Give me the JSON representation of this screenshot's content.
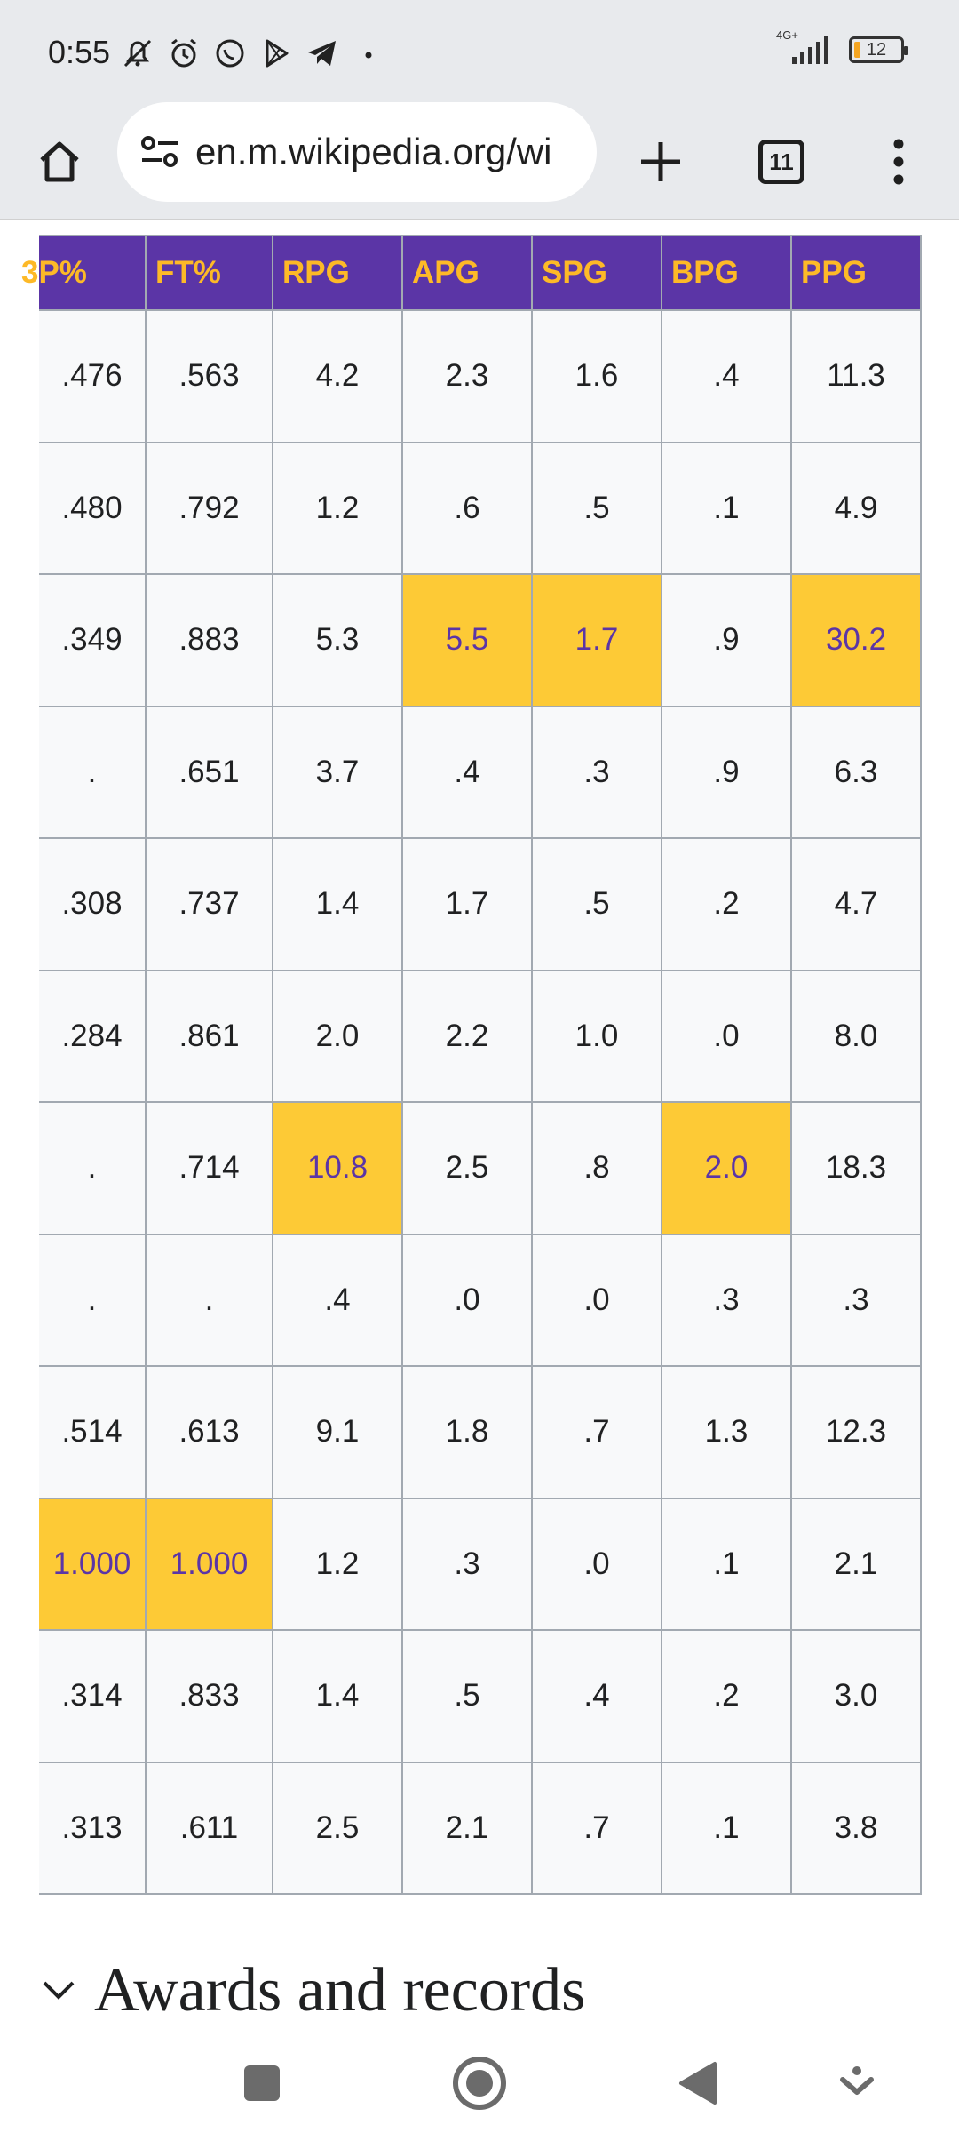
{
  "status_bar": {
    "time": "0:55",
    "network": "4G+",
    "battery": "12",
    "icons": [
      "notifications-off-icon",
      "alarm-icon",
      "whatsapp-icon",
      "play-store-icon",
      "telegram-icon",
      "dot-icon"
    ]
  },
  "browser": {
    "url": "en.m.wikipedia.org/wi",
    "tab_count": "11"
  },
  "table": {
    "columns": [
      "3P%",
      "FT%",
      "RPG",
      "APG",
      "SPG",
      "BPG",
      "PPG"
    ],
    "rows": [
      [
        ".476",
        ".563",
        "4.2",
        "2.3",
        "1.6",
        ".4",
        "11.3"
      ],
      [
        ".480",
        ".792",
        "1.2",
        ".6",
        ".5",
        ".1",
        "4.9"
      ],
      [
        ".349",
        ".883",
        "5.3",
        "5.5",
        "1.7",
        ".9",
        "30.2"
      ],
      [
        ".",
        ".651",
        "3.7",
        ".4",
        ".3",
        ".9",
        "6.3"
      ],
      [
        ".308",
        ".737",
        "1.4",
        "1.7",
        ".5",
        ".2",
        "4.7"
      ],
      [
        ".284",
        ".861",
        "2.0",
        "2.2",
        "1.0",
        ".0",
        "8.0"
      ],
      [
        ".",
        ".714",
        "10.8",
        "2.5",
        ".8",
        "2.0",
        "18.3"
      ],
      [
        ".",
        ".",
        ".4",
        ".0",
        ".0",
        ".3",
        ".3"
      ],
      [
        ".514",
        ".613",
        "9.1",
        "1.8",
        ".7",
        "1.3",
        "12.3"
      ],
      [
        "1.000",
        "1.000",
        "1.2",
        ".3",
        ".0",
        ".1",
        "2.1"
      ],
      [
        ".314",
        ".833",
        "1.4",
        ".5",
        ".4",
        ".2",
        "3.0"
      ],
      [
        ".313",
        ".611",
        "2.5",
        "2.1",
        ".7",
        ".1",
        "3.8"
      ]
    ],
    "highlight_color": "#fdca36",
    "header_bg": "#5b35a6",
    "header_text": "#fdb927"
  },
  "section": {
    "title": "Awards and records"
  }
}
